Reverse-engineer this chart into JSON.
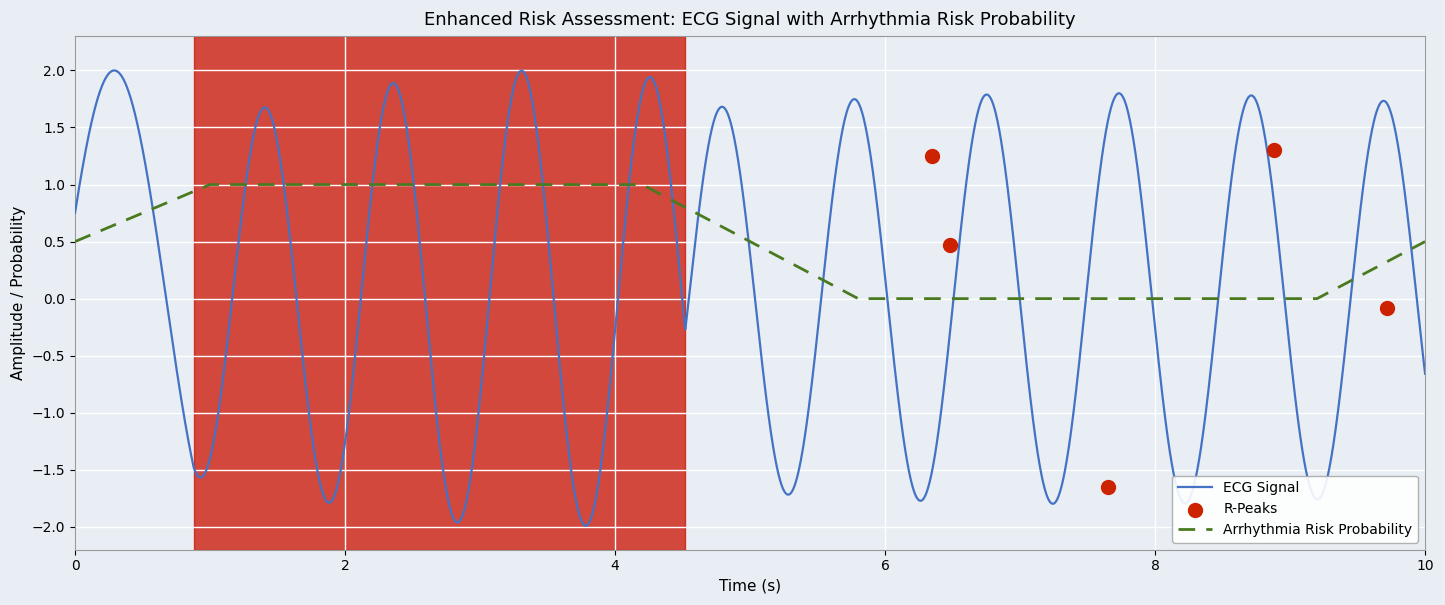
{
  "title": "Enhanced Risk Assessment: ECG Signal with Arrhythmia Risk Probability",
  "xlabel": "Time (s)",
  "ylabel": "Amplitude / Probability",
  "xlim": [
    0,
    10
  ],
  "ylim": [
    -2.2,
    2.3
  ],
  "ecg_color": "#4472c4",
  "risk_color": "#4a7a20",
  "rpeak_color": "#cc2200",
  "highlight_start": 0.88,
  "highlight_end": 4.52,
  "highlight_color": "#cc1100",
  "highlight_alpha": 0.75,
  "background_color": "#e8eef4",
  "legend_loc": "lower right",
  "grid_color": "#ffffff",
  "ecg_linewidth": 1.6,
  "risk_linewidth": 2.0,
  "rpeak_times": [
    6.35,
    6.48,
    7.65,
    8.88,
    9.72
  ],
  "rpeak_yvals": [
    1.25,
    0.47,
    -1.65,
    1.3,
    -0.08
  ]
}
